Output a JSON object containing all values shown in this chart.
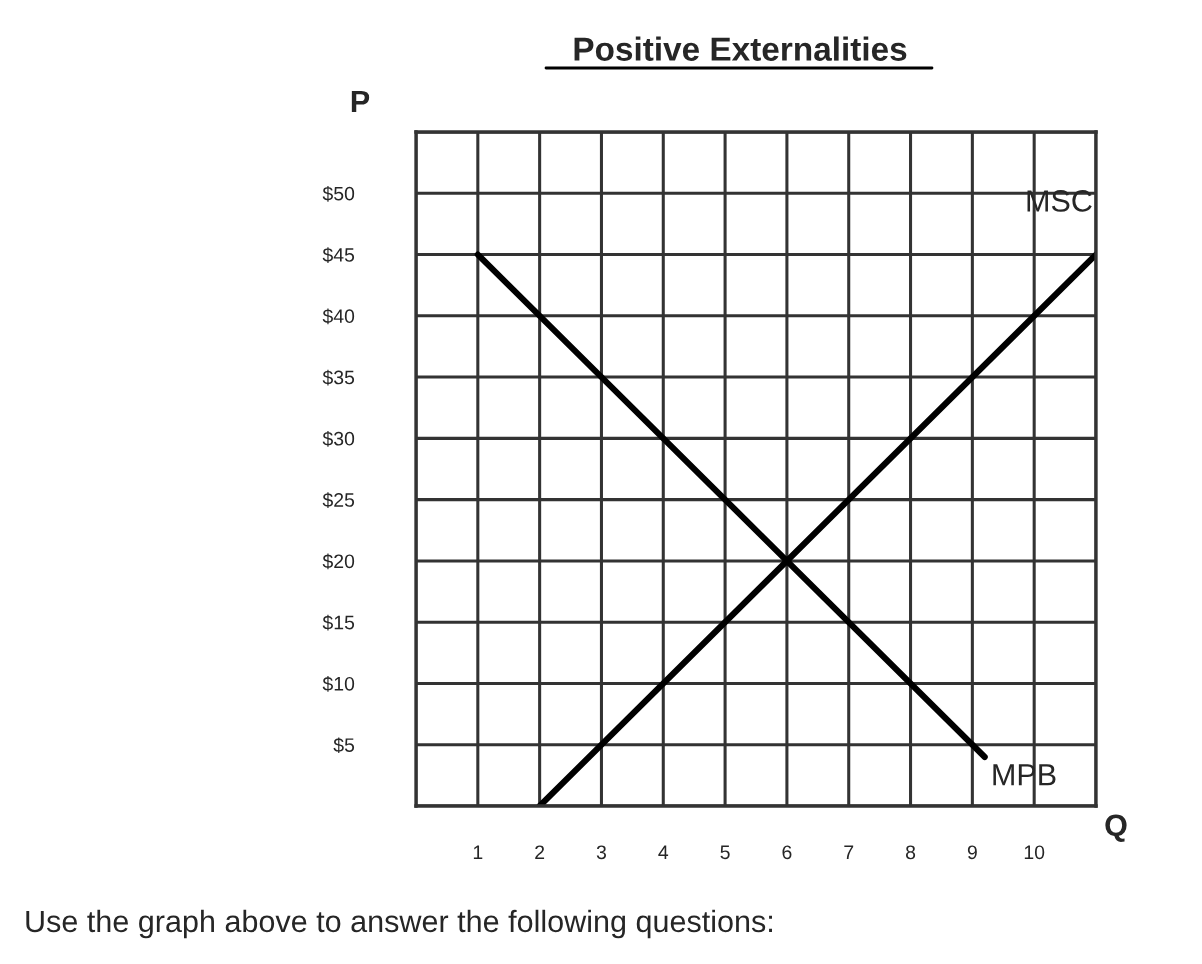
{
  "chart_data": {
    "type": "line",
    "title": "Positive Externalities",
    "xlabel": "Q",
    "ylabel": "P",
    "series": [
      {
        "name": "MPB",
        "color": "#000000",
        "x": [
          1,
          9.2
        ],
        "values": [
          45,
          4
        ]
      },
      {
        "name": "MSC",
        "color": "#000000",
        "x": [
          2,
          11
        ],
        "values": [
          0,
          45
        ]
      }
    ],
    "xlim": [
      0,
      11
    ],
    "xticks": [
      {
        "value": 0,
        "label": null
      },
      1,
      2,
      3,
      4,
      5,
      6,
      7,
      8,
      9,
      10,
      {
        "value": 11,
        "label": null
      }
    ],
    "ylim": [
      0,
      55
    ],
    "yticks": [
      {
        "value": 0,
        "label": null
      },
      {
        "value": 5,
        "label": "$5"
      },
      {
        "value": 10,
        "label": "$10"
      },
      {
        "value": 15,
        "label": "$15"
      },
      {
        "value": 20,
        "label": "$20"
      },
      {
        "value": 25,
        "label": "$25"
      },
      {
        "value": 30,
        "label": "$30"
      },
      {
        "value": 35,
        "label": "$35"
      },
      {
        "value": 40,
        "label": "$40"
      },
      {
        "value": 45,
        "label": "$45"
      },
      {
        "value": 50,
        "label": "$50"
      },
      {
        "value": 55,
        "label": null
      }
    ],
    "grid": true,
    "legend": false,
    "line_style": "solid",
    "marker": "none",
    "annotations": [
      "Use the graph above to answer the following questions:"
    ]
  }
}
